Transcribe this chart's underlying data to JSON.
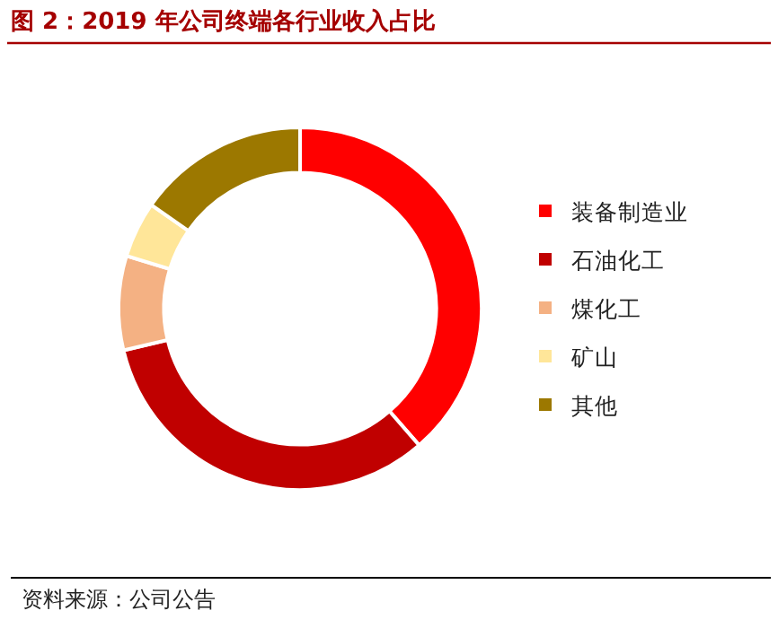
{
  "chart_data": {
    "type": "donut",
    "title": "图 2：2019 年公司终端各行业收入占比",
    "categories": [
      "装备制造业",
      "石油化工",
      "煤化工",
      "矿山",
      "其他"
    ],
    "values": [
      38.6,
      32.7,
      8.4,
      5.0,
      15.3
    ],
    "colors": [
      "#ff0000",
      "#c00000",
      "#f4b183",
      "#ffe699",
      "#9c7800"
    ],
    "legend": "right",
    "annotations": [
      "资料来源：公司公告"
    ]
  }
}
